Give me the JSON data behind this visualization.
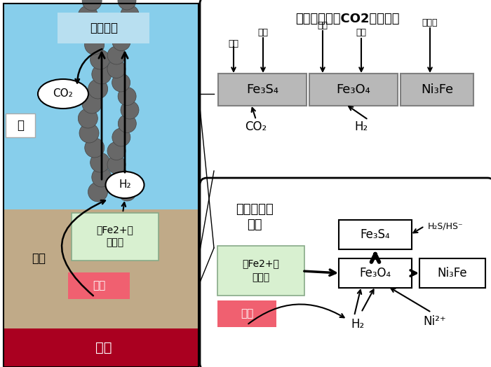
{
  "bg_color": "#ffffff",
  "left_panel": {
    "sky_color": "#87CEEB",
    "crust_color": "#C0AA88",
    "magma_color": "#AA0020",
    "sky_label": "热水喷口",
    "crust_label": "地壳",
    "magma_label": "岩浆",
    "water_label": "水",
    "co2_label": "CO₂",
    "h2_label": "H₂",
    "mineral_box_label1": "含Fe2+的",
    "mineral_box_label2": "矿物质",
    "hotwater_label": "热水",
    "mineral_bg": "#d8f0d0",
    "hotwater_bg": "#f06070"
  },
  "top_right_panel": {
    "title": "矿物质表面的CO2还原反应",
    "minerals": [
      "Fe₃S₄",
      "Fe₃O₄",
      "Ni₃Fe"
    ],
    "products": [
      "甲烷",
      "甲酸",
      "甲醇",
      "乙酸",
      "丙酮酸"
    ],
    "reactants": [
      "CO₂",
      "H₂"
    ],
    "box_color": "#B8B8B8"
  },
  "bottom_right_panel": {
    "title": "矿物质合成\n反应",
    "mineral_fe3s4": "Fe₃S₄",
    "mineral_fe3o4": "Fe₃O₄",
    "mineral_ni3fe": "Ni₃Fe",
    "h2s_label": "H₂S/HS⁻",
    "h2_label": "H₂",
    "ni2_label": "Ni²⁺",
    "mineral_box_label1": "含Fe2+的",
    "mineral_box_label2": "矿物质",
    "hotwater_label": "热水",
    "mineral_bg": "#d8f0d0",
    "hotwater_bg": "#f06070"
  }
}
